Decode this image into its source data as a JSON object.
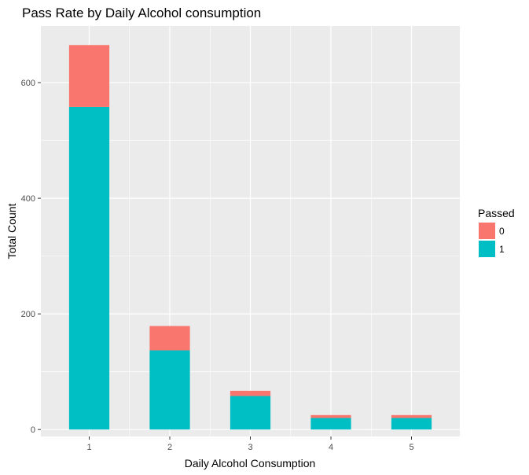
{
  "chart_data": {
    "type": "bar",
    "stacked": true,
    "title": "Pass Rate by Daily Alcohol consumption",
    "xlabel": "Daily Alcohol Consumption",
    "ylabel": "Total Count",
    "categories": [
      "1",
      "2",
      "3",
      "4",
      "5"
    ],
    "series": [
      {
        "name": "1",
        "color": "#00BFC4",
        "values": [
          558,
          137,
          58,
          20,
          20
        ]
      },
      {
        "name": "0",
        "color": "#F8766D",
        "values": [
          107,
          42,
          9,
          5,
          5
        ]
      }
    ],
    "ylim": [
      -12,
      698
    ],
    "yticks": [
      0,
      200,
      400,
      600
    ],
    "ytick_labels": [
      "0",
      "200",
      "400",
      "600"
    ],
    "grid": true,
    "legend": {
      "title": "Passed",
      "position": "right",
      "entries": [
        {
          "label": "0",
          "color": "#F8766D"
        },
        {
          "label": "1",
          "color": "#00BFC4"
        }
      ]
    }
  }
}
